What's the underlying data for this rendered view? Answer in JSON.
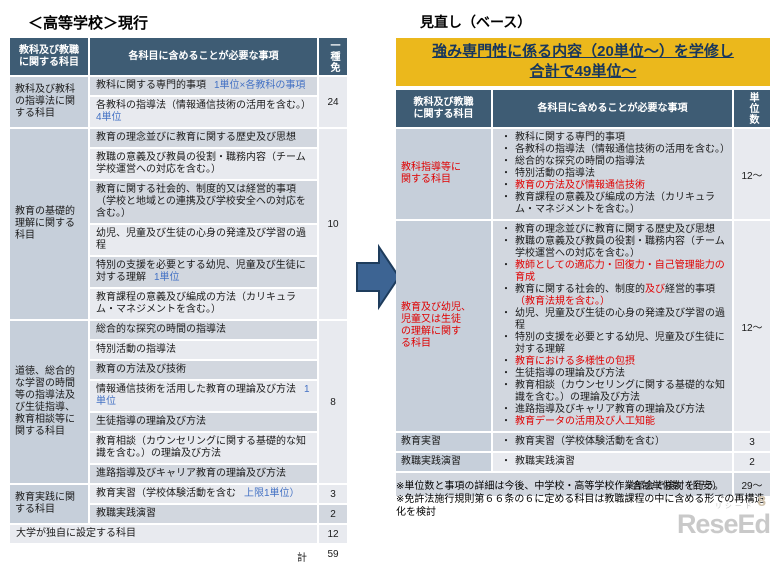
{
  "colors": {
    "header_bg": "#3e5c74",
    "label_bg": "#c6cfda",
    "band_dark": "#d2d7df",
    "band_light": "#e8eaef",
    "accent_blue": "#4472c4",
    "accent_red": "#e00000",
    "banner_bg": "#ebb81c",
    "banner_text": "#17365d",
    "arrow": "#3d6493"
  },
  "left_panel": {
    "title": "＜高等学校＞現行"
  },
  "right_panel": {
    "title": "見直し（ベース）",
    "banner_line1": "強み専門性に係る内容（20単位～）を学修し",
    "banner_line2": "合計で49単位～"
  },
  "left_table": {
    "header": {
      "subject": "教科及び教職\nに関する科目",
      "items": "各科目に含めることが必要な事項",
      "units": "一種免"
    },
    "groups": [
      {
        "subject": "教科及び教科\nの指導法に関\nする科目",
        "units": "24",
        "items": [
          {
            "text": "教科に関する専門的事項",
            "accent": "1単位×各教科の事項"
          },
          {
            "text": "各教科の指導法（情報通信技術の活用を含む。）",
            "accent": "4単位",
            "accent_break": true
          }
        ]
      },
      {
        "subject": "教育の基礎的\n理解に関する\n科目",
        "units": "10",
        "items": [
          {
            "text": "教育の理念並びに教育に関する歴史及び思想"
          },
          {
            "text": "教職の意義及び教員の役割・職務内容（チーム学校運営への対応を含む。）"
          },
          {
            "text": "教育に関する社会的、制度的又は経営的事項（学校と地域との連携及び学校安全への対応を含む。）"
          },
          {
            "text": "幼児、児童及び生徒の心身の発達及び学習の過程"
          },
          {
            "text": "特別の支援を必要とする幼児、児童及び生徒に対する理解",
            "accent": "1単位"
          },
          {
            "text": "教育課程の意義及び編成の方法（カリキュラム・マネジメントを含む。）"
          }
        ]
      },
      {
        "subject": "道徳、総合的\nな学習の時間\n等の指導法及\nび生徒指導、\n教育相談等に\n関する科目",
        "units": "8",
        "items": [
          {
            "text": "総合的な探究の時間の指導法"
          },
          {
            "text": "特別活動の指導法"
          },
          {
            "text": "教育の方法及び技術"
          },
          {
            "text": "情報通信技術を活用した教育の理論及び方法",
            "accent": "1単位"
          },
          {
            "text": "生徒指導の理論及び方法"
          },
          {
            "text": "教育相談（カウンセリングに関する基礎的な知識を含む。）の理論及び方法"
          },
          {
            "text": "進路指導及びキャリア教育の理論及び方法"
          }
        ]
      },
      {
        "subject": "教育実践に関\nする科目",
        "items": [
          {
            "text": "教育実習（学校体験活動を含む",
            "accent": "上限1単位）",
            "units": "3"
          },
          {
            "text": "教職実践演習",
            "units": "2"
          }
        ]
      }
    ],
    "university": {
      "text": "大学が独自に設定する科目",
      "units": "12"
    },
    "total_label": "計",
    "total_value": "59"
  },
  "right_table": {
    "bullet_char": "・",
    "header": {
      "subject": "教科及び教職\nに関する科目",
      "items": "各科目に含めることが必要な事項",
      "units": "単位数"
    },
    "groups": [
      {
        "subject": "教科指導等に\n関する科目",
        "subject_red": true,
        "units": "12～",
        "bullets": [
          {
            "text": "教科に関する専門的事項"
          },
          {
            "text": "各教科の指導法（情報通信技術の活用を含む。）"
          },
          {
            "text": "総合的な探究の時間の指導法"
          },
          {
            "text": "特別活動の指導法"
          },
          {
            "text": "教育の方法及び情報通信技術",
            "red": true
          },
          {
            "text": "教育課程の意義及び編成の方法（カリキュラム・マネジメントを含む。）"
          }
        ]
      },
      {
        "subject": "教育及び幼児、\n児童又は生徒\nの理解に関す\nる科目",
        "subject_red": true,
        "units": "12～",
        "bullets": [
          {
            "text": "教育の理念並びに教育に関する歴史及び思想"
          },
          {
            "text": "教職の意義及び教員の役割・職務内容（チーム学校運営への対応を含む。）"
          },
          {
            "text": "教師としての適応力・回復力・自己管理能力の育成",
            "red": true
          },
          {
            "segments": [
              {
                "text": "教育に関する社会的、制度的"
              },
              {
                "text": "及び",
                "red": true
              },
              {
                "text": "経営的事項"
              },
              {
                "text": "（教育法規を含む。）",
                "red": true
              }
            ]
          },
          {
            "text": "幼児、児童及び生徒の心身の発達及び学習の過程"
          },
          {
            "text": "特別の支援を必要とする幼児、児童及び生徒に対する理解"
          },
          {
            "text": "教育における多様性の包摂",
            "red": true
          },
          {
            "text": "生徒指導の理論及び方法"
          },
          {
            "text": "教育相談（カウンセリングに関する基礎的な知識を含む。）の理論及び方法"
          },
          {
            "text": "進路指導及びキャリア教育の理論及び方法"
          },
          {
            "text": "教育データの活用及び人工知能",
            "red": true
          }
        ]
      },
      {
        "subject": "教育実習",
        "units": "3",
        "bullets": [
          {
            "text": "教育実習（学校体験活動を含む）"
          }
        ]
      },
      {
        "subject": "教職実践演習",
        "units": "2",
        "bullets": [
          {
            "text": "教職実践演習"
          }
        ]
      }
    ],
    "total_label": "合計単位数（目安）",
    "total_value": "29～"
  },
  "notes": [
    "※単位数と事項の詳細は今後、中学校・高等学校作業部会で検討を行う。",
    "※免許法施行規則第６６条の６に定める科目は教職課程の中に含める形での再構造化を検討"
  ],
  "watermark": {
    "ruby": "リシード",
    "text": "ReseEd",
    "page": "8"
  }
}
